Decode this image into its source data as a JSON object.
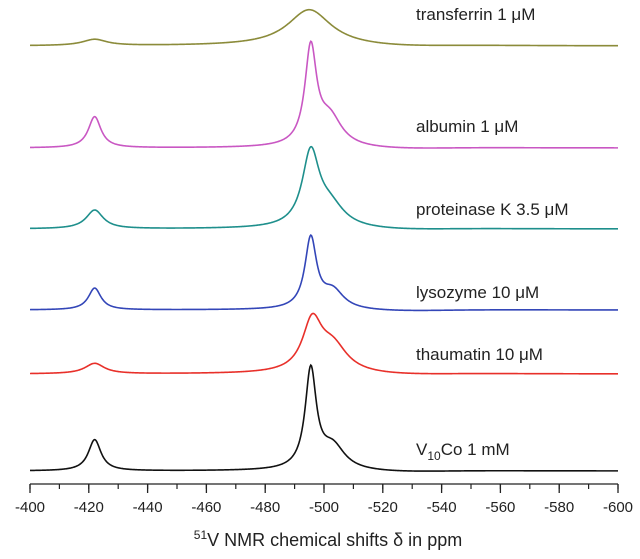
{
  "chart_data": {
    "type": "line",
    "title": "",
    "xlabel_parts": {
      "sup": "51",
      "main": "V NMR chemical shifts δ in ppm"
    },
    "ylabel": "",
    "xlim": [
      -400,
      -600
    ],
    "x_ticks": [
      -400,
      -420,
      -440,
      -460,
      -480,
      -500,
      -520,
      -540,
      -560,
      -580,
      -600
    ],
    "x_minor_step": 10,
    "grid": false,
    "legend": "none",
    "series": [
      {
        "label": "transferrin 1 μM",
        "color": "#8b8b3a",
        "peaks": [
          {
            "x": -422,
            "height": 0.12,
            "width": 5
          },
          {
            "x": -495,
            "height": 0.7,
            "width": 9
          }
        ]
      },
      {
        "label": "albumin 1 μM",
        "color": "#c957c3",
        "peaks": [
          {
            "x": -422,
            "height": 0.6,
            "width": 2.6
          },
          {
            "x": -495.5,
            "height": 1.85,
            "width": 2.4
          },
          {
            "x": -502,
            "height": 0.55,
            "width": 5
          }
        ]
      },
      {
        "label": "proteinase K 3.5 μM",
        "color": "#1e8f8c",
        "peaks": [
          {
            "x": -422,
            "height": 0.36,
            "width": 3.5
          },
          {
            "x": -495.5,
            "height": 1.4,
            "width": 3.5
          },
          {
            "x": -502,
            "height": 0.4,
            "width": 6
          }
        ]
      },
      {
        "label": "lysozyme 10 μM",
        "color": "#3346b8",
        "peaks": [
          {
            "x": -422,
            "height": 0.42,
            "width": 2.6
          },
          {
            "x": -495.5,
            "height": 1.35,
            "width": 2.4
          },
          {
            "x": -503,
            "height": 0.35,
            "width": 4.5
          }
        ]
      },
      {
        "label": "thaumatin 10 μM",
        "color": "#e8302a",
        "peaks": [
          {
            "x": -422,
            "height": 0.2,
            "width": 4
          },
          {
            "x": -496,
            "height": 0.95,
            "width": 4
          },
          {
            "x": -503,
            "height": 0.5,
            "width": 6
          }
        ]
      },
      {
        "label": "V₁₀Co 1 mM",
        "color": "#111111",
        "peaks": [
          {
            "x": -422,
            "height": 0.6,
            "width": 2.6
          },
          {
            "x": -495.5,
            "height": 1.9,
            "width": 2.3
          },
          {
            "x": -503,
            "height": 0.45,
            "width": 5
          }
        ]
      }
    ],
    "label_parts": {
      "V₁₀Co 1 mM": {
        "main": "V",
        "sub": "10",
        "rest": "Co 1 mM"
      }
    }
  }
}
